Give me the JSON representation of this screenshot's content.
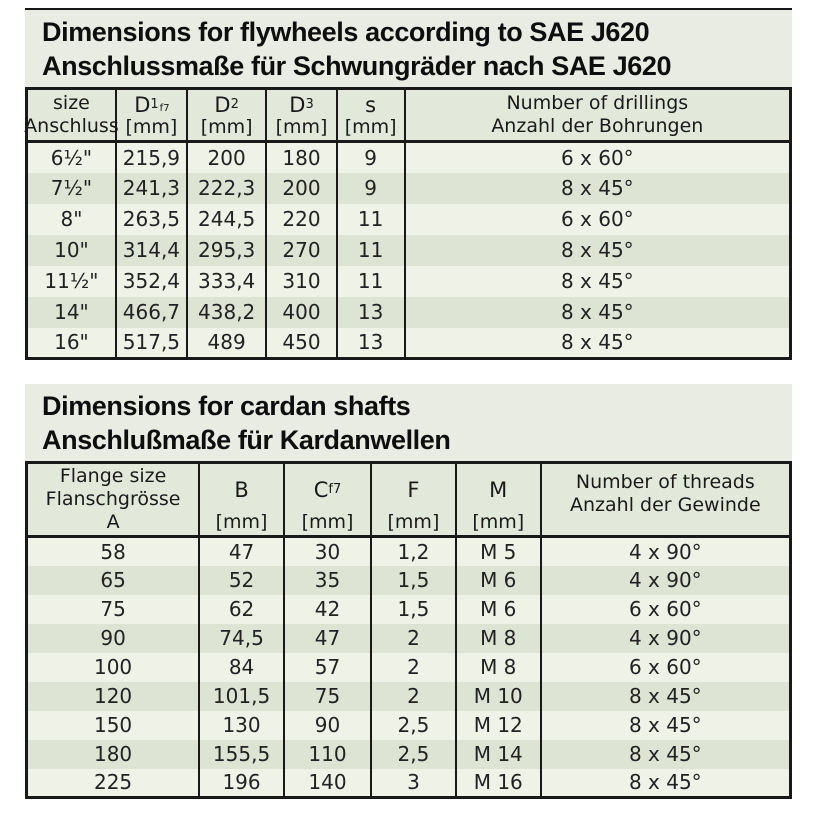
{
  "titles": {
    "flywheel": {
      "line1": "Dimensions for flywheels according to SAE J620",
      "line2": "Anschlussmaße für Schwungräder nach SAE J620"
    },
    "cardan": {
      "line1": "Dimensions for cardan shafts",
      "line2": "Anschlußmaße für Kardanwellen"
    }
  },
  "flywheel_table": {
    "columns": [
      {
        "line1": "size",
        "line2": "Anschluss"
      },
      {
        "base": "D",
        "sub": "1",
        "subsub": "f7",
        "unit": "[mm]"
      },
      {
        "base": "D",
        "sub": "2",
        "unit": "[mm]"
      },
      {
        "base": "D",
        "sub": "3",
        "unit": "[mm]"
      },
      {
        "base": "s",
        "unit": "[mm]"
      },
      {
        "line1": "Number of drillings",
        "line2": "Anzahl der Bohrungen"
      }
    ],
    "rows": [
      [
        "6½\"",
        "215,9",
        "200",
        "180",
        "9",
        "6 x 60°"
      ],
      [
        "7½\"",
        "241,3",
        "222,3",
        "200",
        "9",
        "8 x 45°"
      ],
      [
        "8\"",
        "263,5",
        "244,5",
        "220",
        "11",
        "6 x 60°"
      ],
      [
        "10\"",
        "314,4",
        "295,3",
        "270",
        "11",
        "8 x 45°"
      ],
      [
        "11½\"",
        "352,4",
        "333,4",
        "310",
        "11",
        "8 x 45°"
      ],
      [
        "14\"",
        "466,7",
        "438,2",
        "400",
        "13",
        "8 x 45°"
      ],
      [
        "16\"",
        "517,5",
        "489",
        "450",
        "13",
        "8 x 45°"
      ]
    ]
  },
  "cardan_table": {
    "columns": [
      {
        "line1": "Flange size",
        "line2": "Flanschgrösse",
        "line3": "A"
      },
      {
        "base": "B",
        "unit": "[mm]"
      },
      {
        "base": "C",
        "sub": "f7",
        "unit": "[mm]"
      },
      {
        "base": "F",
        "unit": "[mm]"
      },
      {
        "base": "M",
        "unit": "[mm]"
      },
      {
        "line1": "Number of threads",
        "line2": "Anzahl der Gewinde"
      }
    ],
    "rows": [
      [
        "58",
        "47",
        "30",
        "1,2",
        "M 5",
        "4 x 90°"
      ],
      [
        "65",
        "52",
        "35",
        "1,5",
        "M 6",
        "4 x 90°"
      ],
      [
        "75",
        "62",
        "42",
        "1,5",
        "M 6",
        "6 x 60°"
      ],
      [
        "90",
        "74,5",
        "47",
        "2",
        "M 8",
        "4 x 90°"
      ],
      [
        "100",
        "84",
        "57",
        "2",
        "M 8",
        "6 x 60°"
      ],
      [
        "120",
        "101,5",
        "75",
        "2",
        "M 10",
        "8 x 45°"
      ],
      [
        "150",
        "130",
        "90",
        "2,5",
        "M 12",
        "8 x 45°"
      ],
      [
        "180",
        "155,5",
        "110",
        "2,5",
        "M 14",
        "8 x 45°"
      ],
      [
        "225",
        "196",
        "140",
        "3",
        "M 16",
        "8 x 45°"
      ]
    ]
  },
  "colors": {
    "title_background": "#e9ece2",
    "header_background": "#e3e9da",
    "row_light": "#eef2e7",
    "row_dark": "#dde4d4",
    "border": "#191919",
    "text": "#1c1c1c"
  }
}
